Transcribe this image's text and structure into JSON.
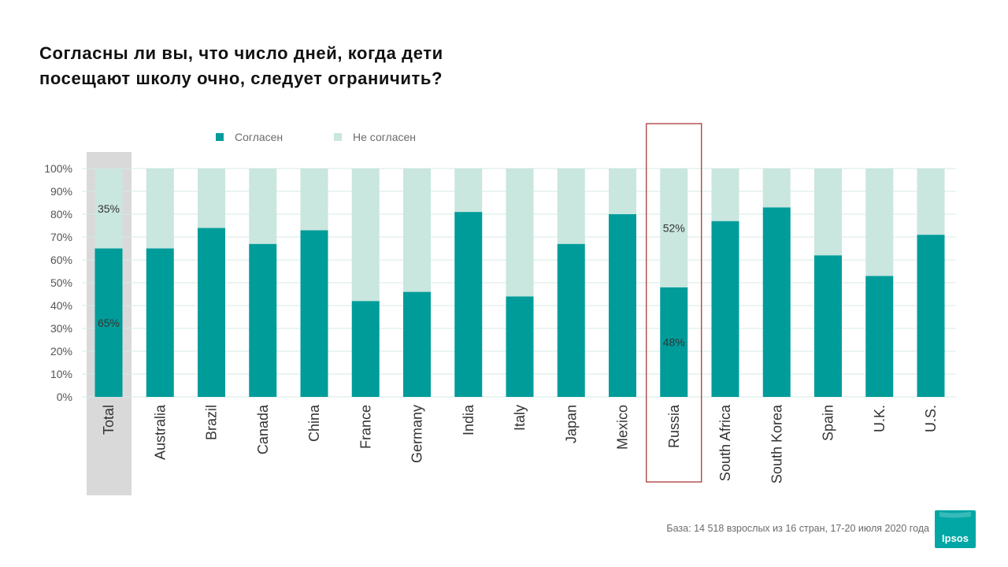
{
  "title_lines": [
    "Согласны ли вы, что число дней, когда дети",
    "посещают школу очно, следует ограничить?"
  ],
  "source_note": "База: 14 518 взрослых из 16 стран, 17-20 июля 2020 года",
  "logo_text": "Ipsos",
  "colors": {
    "agree": "#009c9a",
    "disagree": "#c9e6df",
    "highlight_total": "#d9d9d9",
    "highlight_frame": "#a52a2a",
    "logo": "#00a7a5"
  },
  "chart_data": {
    "type": "bar",
    "stacked": true,
    "percent_stacked": true,
    "title": "Согласны ли вы, что число дней, когда дети посещают школу очно, следует ограничить?",
    "xlabel": "",
    "ylabel": "",
    "ylim": [
      0,
      100
    ],
    "y_ticks": [
      "0%",
      "10%",
      "20%",
      "30%",
      "40%",
      "50%",
      "60%",
      "70%",
      "80%",
      "90%",
      "100%"
    ],
    "grid": true,
    "legend_position": "top",
    "categories": [
      "Total",
      "Australia",
      "Brazil",
      "Canada",
      "China",
      "France",
      "Germany",
      "India",
      "Italy",
      "Japan",
      "Mexico",
      "Russia",
      "South Africa",
      "South Korea",
      "Spain",
      "U.K.",
      "U.S."
    ],
    "series": [
      {
        "name": "Согласен",
        "values": [
          65,
          65,
          74,
          67,
          73,
          42,
          46,
          81,
          44,
          67,
          80,
          48,
          77,
          83,
          62,
          53,
          71
        ]
      },
      {
        "name": "Не согласен",
        "values": [
          35,
          35,
          26,
          33,
          27,
          58,
          54,
          19,
          56,
          33,
          20,
          52,
          23,
          17,
          38,
          47,
          29
        ]
      }
    ],
    "data_labels": [
      {
        "category": "Total",
        "series": "Согласен",
        "text": "65%"
      },
      {
        "category": "Total",
        "series": "Не согласен",
        "text": "35%"
      },
      {
        "category": "Russia",
        "series": "Согласен",
        "text": "48%"
      },
      {
        "category": "Russia",
        "series": "Не согласен",
        "text": "52%"
      }
    ],
    "highlighted_categories": [
      "Total",
      "Russia"
    ]
  }
}
